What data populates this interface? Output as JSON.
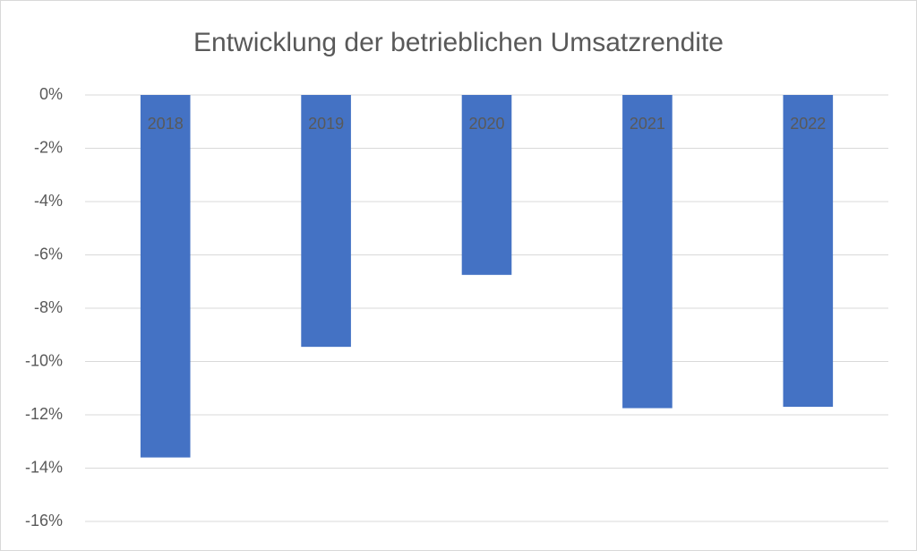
{
  "chart_data": {
    "type": "bar",
    "title": "Entwicklung der betrieblichen Umsatzrendite",
    "categories": [
      "2018",
      "2019",
      "2020",
      "2021",
      "2022"
    ],
    "values": [
      -13.6,
      -9.45,
      -6.75,
      -11.75,
      -11.7
    ],
    "color": "#4472c4",
    "ylim": [
      -16,
      0
    ],
    "yticks": [
      {
        "value": 0,
        "label": "0%"
      },
      {
        "value": -2,
        "label": "-2%"
      },
      {
        "value": -4,
        "label": "-4%"
      },
      {
        "value": -6,
        "label": "-6%"
      },
      {
        "value": -8,
        "label": "-8%"
      },
      {
        "value": -10,
        "label": "-10%"
      },
      {
        "value": -12,
        "label": "-12%"
      },
      {
        "value": -14,
        "label": "-14%"
      },
      {
        "value": -16,
        "label": "-16%"
      }
    ],
    "grid": true
  }
}
